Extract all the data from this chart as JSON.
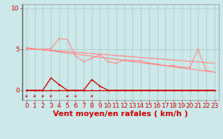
{
  "bg_color": "#cce8e8",
  "grid_color": "#aacccc",
  "line_color_dark": "#cc0000",
  "line_color_light": "#ff8888",
  "xlabel": "Vent moyen/en rafales ( km/h )",
  "xlim": [
    -0.5,
    23.5
  ],
  "ylim": [
    -1.2,
    10.5
  ],
  "yticks": [
    0,
    5,
    10
  ],
  "xticks": [
    0,
    1,
    2,
    3,
    4,
    5,
    6,
    7,
    8,
    9,
    10,
    11,
    12,
    13,
    14,
    15,
    16,
    17,
    18,
    19,
    20,
    21,
    22,
    23
  ],
  "series_light_zigzag_x": [
    0,
    1,
    2,
    3,
    4,
    5,
    6,
    7,
    8,
    9,
    10,
    11,
    12,
    13,
    14,
    15,
    16,
    17,
    18,
    19,
    20,
    21,
    22,
    23
  ],
  "series_light_zigzag_y": [
    5.0,
    5.0,
    5.0,
    5.1,
    6.3,
    6.2,
    4.2,
    3.5,
    3.9,
    4.3,
    3.5,
    3.3,
    3.7,
    3.6,
    3.6,
    3.3,
    3.2,
    3.0,
    3.0,
    2.8,
    2.8,
    5.0,
    2.4,
    2.2
  ],
  "series_light_trend1_x": [
    0,
    23
  ],
  "series_light_trend1_y": [
    5.1,
    3.3
  ],
  "series_light_trend2_x": [
    0,
    23
  ],
  "series_light_trend2_y": [
    5.2,
    2.2
  ],
  "series_dark_flat_x": [
    0,
    1,
    2,
    3,
    4,
    5,
    6,
    7,
    8,
    9,
    10,
    11,
    12,
    13,
    14,
    15,
    16,
    17,
    18,
    19,
    20,
    21,
    22,
    23
  ],
  "series_dark_flat_y": [
    0.0,
    0.0,
    0.0,
    0.0,
    0.0,
    0.0,
    0.0,
    0.0,
    0.0,
    0.0,
    0.0,
    0.0,
    0.0,
    0.0,
    0.0,
    0.0,
    0.0,
    0.0,
    0.0,
    0.0,
    0.0,
    0.0,
    0.0,
    0.0
  ],
  "series_dark_spike_x": [
    0,
    1,
    2,
    3,
    4,
    5,
    6,
    7,
    8,
    9,
    10,
    11,
    12,
    13,
    14,
    15,
    16,
    17,
    18,
    19,
    20,
    21,
    22,
    23
  ],
  "series_dark_spike_y": [
    0.0,
    0.0,
    0.0,
    1.5,
    0.7,
    0.0,
    0.0,
    0.0,
    1.3,
    0.5,
    0.0,
    0.0,
    0.0,
    0.0,
    0.0,
    0.0,
    0.0,
    0.0,
    0.0,
    0.0,
    0.0,
    0.0,
    0.0,
    0.0
  ],
  "arrows_x": [
    0,
    1,
    2,
    3,
    5,
    6,
    8
  ],
  "arrows_angles_deg": [
    225,
    215,
    210,
    195,
    240,
    255,
    270
  ],
  "xlabel_fontsize": 8,
  "tick_fontsize": 6.5
}
